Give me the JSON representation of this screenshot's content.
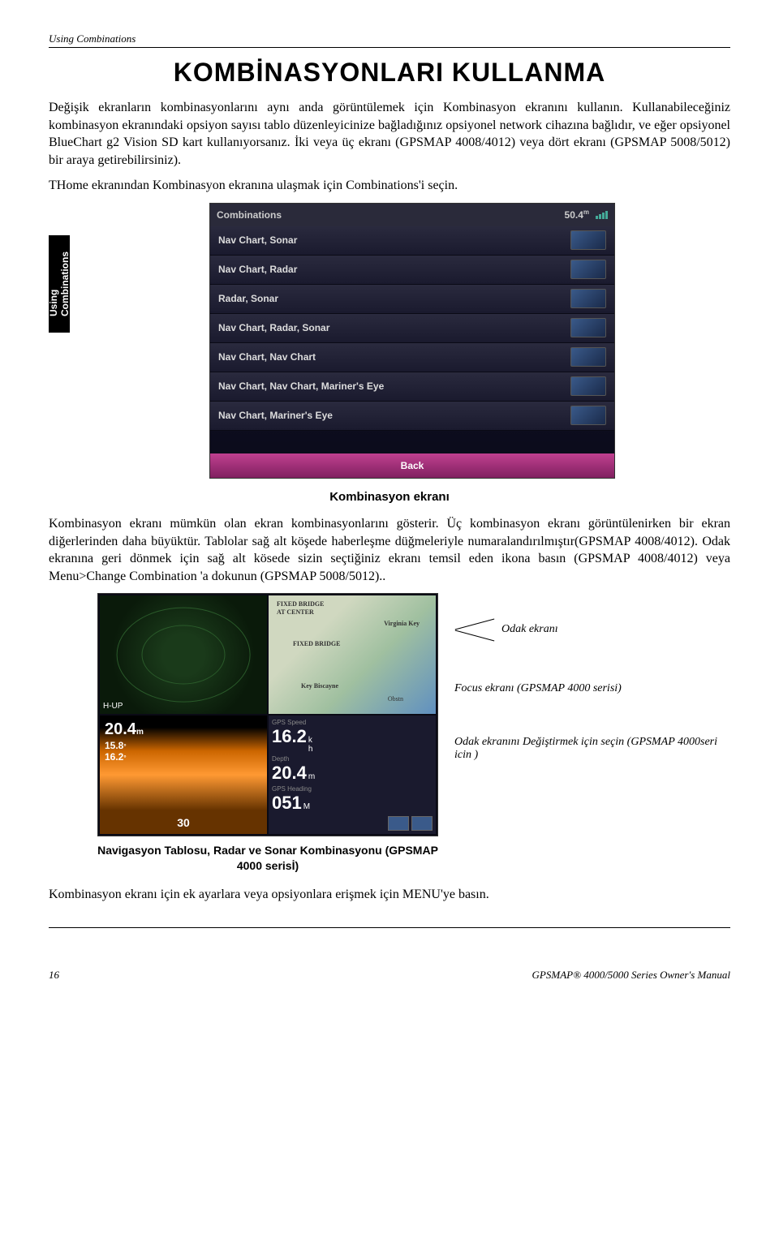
{
  "header": {
    "section_label": "Using Combinations"
  },
  "title": "KOMBİNASYONLARI  KULLANMA",
  "para1": "Değişik ekranların kombinasyonlarını aynı anda görüntülemek için Kombinasyon ekranını kullanın. Kullanabileceğiniz kombinasyon ekranındaki opsiyon sayısı tablo düzenleyicinize bağladığınız opsiyonel network cihazına bağlıdır, ve eğer opsiyonel BlueChart g2 Vision SD kart kullanıyorsanız. İki veya üç ekranı (GPSMAP 4008/4012) veya dört ekranı (GPSMAP 5008/5012) bir araya getirebilirsiniz).",
  "para2": "THome ekranından Kombinasyon ekranına ulaşmak için Combinations'i seçin.",
  "side_tab": "Using\nCombinations",
  "screenshot1": {
    "title": "Combinations",
    "depth": "50.4",
    "depth_unit": "m",
    "menu_items": [
      "Nav Chart, Sonar",
      "Nav Chart, Radar",
      "Radar, Sonar",
      "Nav Chart, Radar, Sonar",
      "Nav Chart, Nav Chart",
      "Nav Chart, Nav Chart, Mariner's Eye",
      "Nav Chart, Mariner's Eye"
    ],
    "back": "Back"
  },
  "caption1": "Kombinasyon ekranı",
  "para3": "Kombinasyon ekranı mümkün olan ekran kombinasyonlarını gösterir. Üç kombinasyon ekranı görüntülenirken bir ekran diğerlerinden daha büyüktür. Tablolar sağ alt köşede haberleşme düğmeleriyle numaralandırılmıştır(GPSMAP 4008/4012). Odak ekranına geri dönmek için sağ alt kösede sizin seçtiğiniz ekranı temsil eden ikona basın (GPSMAP 4008/4012) veya Menu>Change Combination 'a dokunun (GPSMAP 5008/5012)..",
  "screenshot2": {
    "sonar_depth": "20.4",
    "sonar_unit": "m",
    "temp1": "15.8",
    "temp2": "16.2",
    "scale": "30",
    "data_speed": "16.2",
    "data_depth": "20.4",
    "data_heading": "051",
    "heading_unit": "M",
    "gps_label": "GPS Speed",
    "depth_label": "Depth",
    "heading_label": "GPS Heading",
    "map_labels": [
      "FIXED BRIDGE",
      "AT CENTER",
      "Virginia Key",
      "FIXED BRIDGE",
      "Key Biscayne",
      "Obstn"
    ],
    "hup": "H-UP"
  },
  "right_labels": {
    "l1": "Odak ekranı",
    "l2": "Focus ekranı (GPSMAP 4000 serisi)",
    "l3": "Odak ekranını Değiştirmek için seçin (GPSMAP 4000seri icin )"
  },
  "caption2": "Navigasyon Tablosu, Radar ve Sonar Kombinasyonu   (GPSMAP 4000 serisİ)",
  "para4": "Kombinasyon ekranı için ek ayarlara veya opsiyonlara erişmek için MENU'ye basın.",
  "footer": {
    "page": "16",
    "manual": "GPSMAP® 4000/5000 Series Owner's Manual"
  },
  "colors": {
    "back_button": "#a03080",
    "menu_bg": "#1a1a2e"
  }
}
